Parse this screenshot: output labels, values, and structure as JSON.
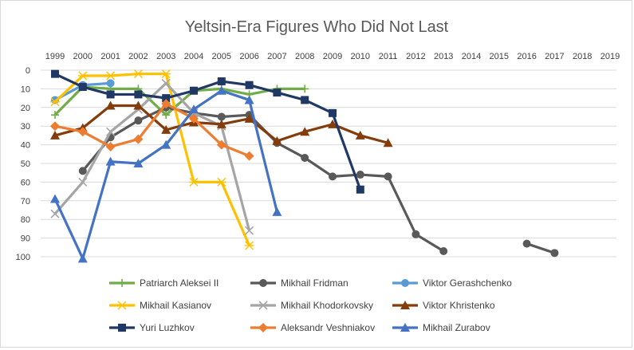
{
  "chart_data": {
    "type": "line",
    "title": "Yeltsin-Era Figures Who Did Not Last",
    "xlabel": "",
    "ylabel": "",
    "x": [
      1999,
      2000,
      2001,
      2002,
      2003,
      2004,
      2005,
      2006,
      2007,
      2008,
      2009,
      2010,
      2011,
      2012,
      2013,
      2014,
      2015,
      2016,
      2017,
      2018,
      2019
    ],
    "x_tick_labels": [
      "1999",
      "2000",
      "2001",
      "2002",
      "2003",
      "2004",
      "2005",
      "2006",
      "2007",
      "2008",
      "2009",
      "2010",
      "2011",
      "2012",
      "2013",
      "2014",
      "2015",
      "2016",
      "2017",
      "2018",
      "2019"
    ],
    "y_tick_labels": [
      "0",
      "10",
      "20",
      "30",
      "40",
      "50",
      "60",
      "70",
      "80",
      "90",
      "100"
    ],
    "ylim": [
      0,
      100
    ],
    "y_reversed": true,
    "x_axis_position": "top",
    "grid": "horizontal",
    "legend_position": "bottom",
    "series": [
      {
        "name": "Patriarch Aleksei II",
        "color": "#70ad47",
        "marker": "plus",
        "values": [
          24,
          9,
          10,
          10,
          24,
          11,
          10,
          13,
          10,
          10,
          null,
          null,
          null,
          null,
          null,
          null,
          null,
          null,
          null,
          null,
          null
        ]
      },
      {
        "name": "Mikhail Fridman",
        "color": "#595959",
        "marker": "circle",
        "values": [
          null,
          54,
          36,
          27,
          20,
          23,
          25,
          24,
          39,
          47,
          57,
          56,
          57,
          88,
          97,
          null,
          null,
          93,
          98,
          null,
          null
        ]
      },
      {
        "name": "Viktor Gerashchenko",
        "color": "#5b9bd5",
        "marker": "circle",
        "values": [
          16,
          8,
          7,
          null,
          null,
          null,
          null,
          null,
          null,
          null,
          null,
          null,
          null,
          null,
          null,
          null,
          null,
          null,
          null,
          null,
          null
        ]
      },
      {
        "name": "Mikhail Kasianov",
        "color": "#ffc000",
        "marker": "star",
        "values": [
          17,
          3,
          3,
          2,
          2,
          60,
          60,
          94,
          null,
          null,
          null,
          null,
          null,
          null,
          null,
          null,
          null,
          null,
          null,
          null,
          null
        ]
      },
      {
        "name": "Mikhail Khodorkovsky",
        "color": "#a5a5a5",
        "marker": "x",
        "values": [
          77,
          60,
          33,
          21,
          7,
          23,
          30,
          86,
          null,
          null,
          null,
          null,
          null,
          null,
          null,
          null,
          null,
          null,
          null,
          null,
          null
        ]
      },
      {
        "name": "Viktor Khristenko",
        "color": "#843c0c",
        "marker": "triangle",
        "values": [
          35,
          31,
          19,
          19,
          32,
          28,
          29,
          26,
          38,
          33,
          29,
          35,
          39,
          null,
          null,
          null,
          null,
          null,
          null,
          null,
          null
        ]
      },
      {
        "name": "Yuri Luzhkov",
        "color": "#1f3864",
        "marker": "square",
        "values": [
          2,
          9,
          13,
          13,
          15,
          11,
          6,
          8,
          12,
          16,
          23,
          64,
          null,
          null,
          null,
          null,
          null,
          null,
          null,
          null,
          null
        ]
      },
      {
        "name": "Aleksandr Veshniakov",
        "color": "#ed7d31",
        "marker": "diamond",
        "values": [
          30,
          33,
          41,
          37,
          18,
          26,
          40,
          46,
          null,
          null,
          null,
          null,
          null,
          null,
          null,
          null,
          null,
          null,
          null,
          null,
          null
        ]
      },
      {
        "name": "Mikhail Zurabov",
        "color": "#4472c4",
        "marker": "triangle",
        "values": [
          69,
          101,
          49,
          50,
          40,
          21,
          11,
          16,
          76,
          null,
          null,
          null,
          null,
          null,
          null,
          null,
          null,
          null,
          null,
          null,
          null
        ]
      }
    ]
  }
}
